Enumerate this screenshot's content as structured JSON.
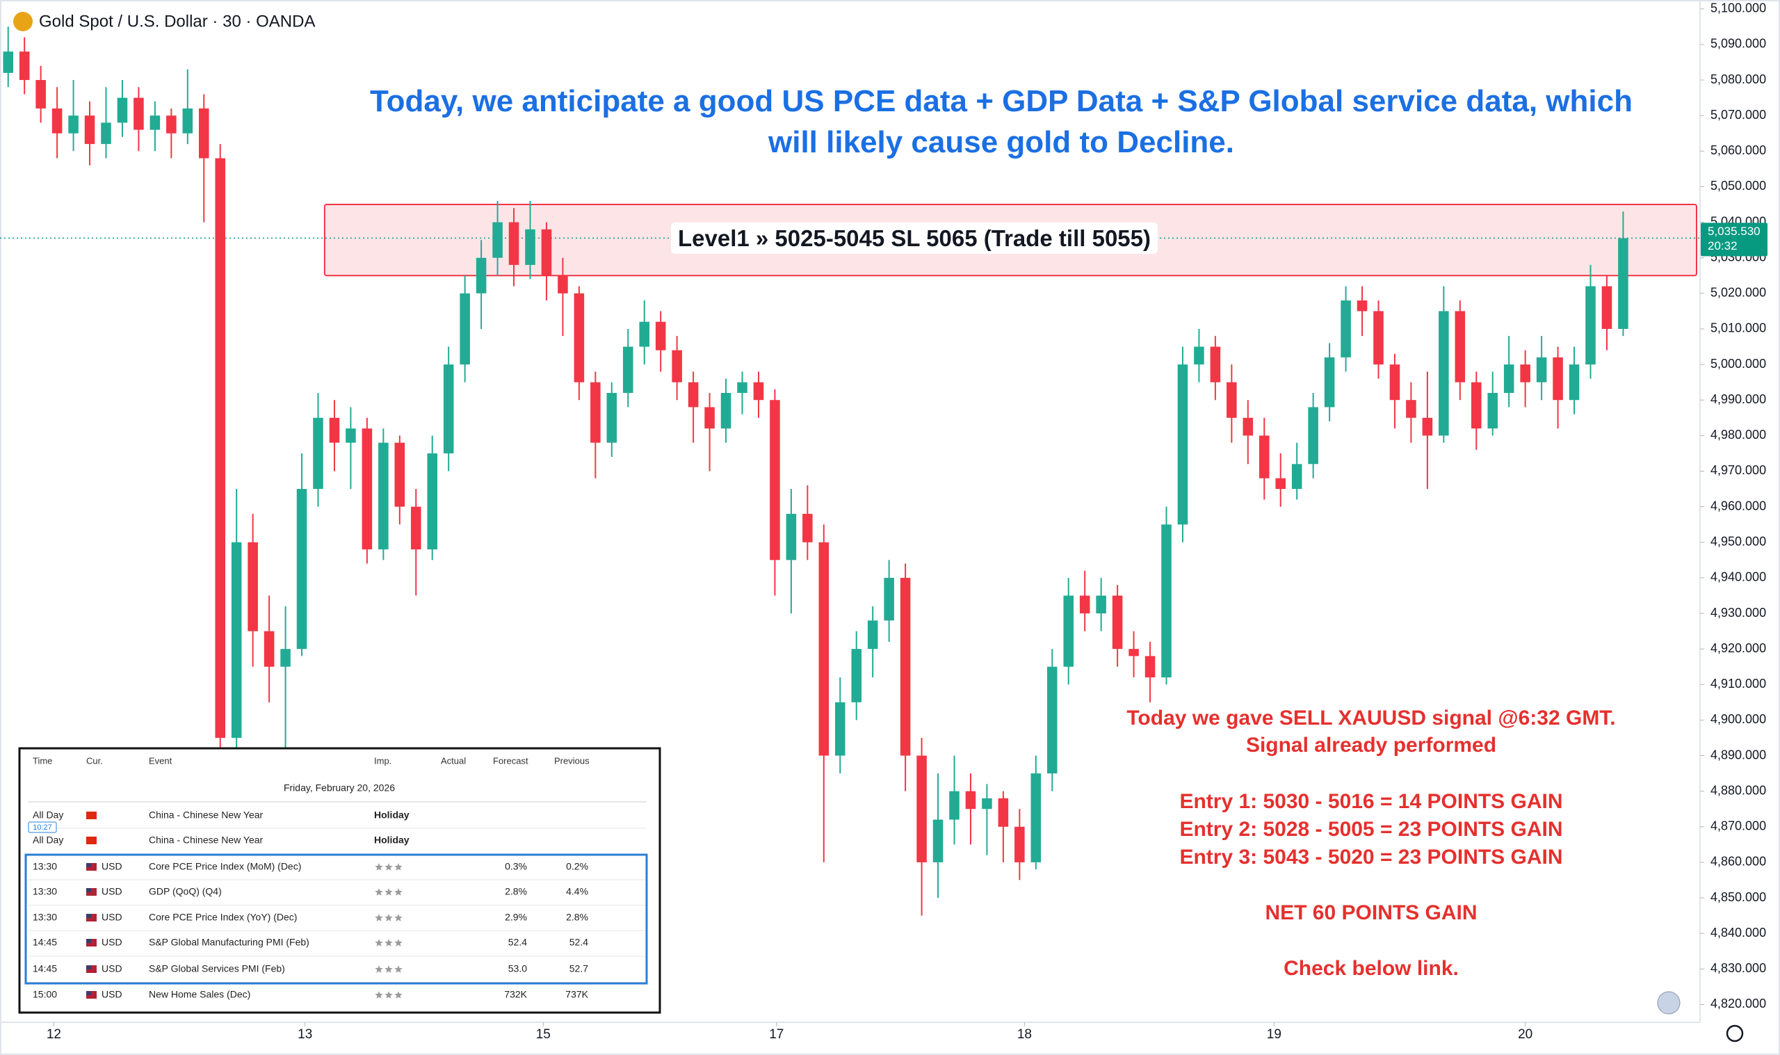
{
  "chart_data": {
    "type": "candlestick",
    "title": "Gold Spot / U.S. Dollar · 30 · OANDA",
    "headline": "Today, we anticipate a good US PCE data + GDP Data + S&P Global service data, which will likely cause gold to Decline.",
    "signal_text": [
      "Today we gave SELL XAUUSD signal @6:32 GMT.",
      "Signal already performed",
      "Entry 1: 5030 - 5016 = 14 POINTS GAIN",
      "Entry 2: 5028 - 5005 = 23 POINTS GAIN",
      "Entry 3: 5043 - 5020 = 23 POINTS GAIN",
      "NET 60 POINTS GAIN",
      "Check below link."
    ],
    "up_color": "#22ab94",
    "down_color": "#f23645",
    "zone": {
      "from": 5025,
      "to": 5045,
      "x_start": 19.4,
      "label": "Level1 » 5025-5045 SL 5065 (Trade till 5055)",
      "color": "#f23645"
    },
    "last_price": {
      "value": 5035.53,
      "label": "5,035.530",
      "countdown": "20:32",
      "color": "#089981"
    },
    "xlim": [
      -0.5,
      103.5
    ],
    "ylim": [
      4815,
      5102.5
    ],
    "xticks": [
      {
        "value": 2.8,
        "label": "12"
      },
      {
        "value": 18.2,
        "label": "13"
      },
      {
        "value": 32.8,
        "label": "15"
      },
      {
        "value": 47.1,
        "label": "17"
      },
      {
        "value": 62.3,
        "label": "18"
      },
      {
        "value": 77.6,
        "label": "19"
      },
      {
        "value": 93,
        "label": "20"
      }
    ],
    "yticks": [
      {
        "value": 4820,
        "label": "4,820.000"
      },
      {
        "value": 4830,
        "label": "4,830.000"
      },
      {
        "value": 4840,
        "label": "4,840.000"
      },
      {
        "value": 4850,
        "label": "4,850.000"
      },
      {
        "value": 4860,
        "label": "4,860.000"
      },
      {
        "value": 4870,
        "label": "4,870.000"
      },
      {
        "value": 4880,
        "label": "4,880.000"
      },
      {
        "value": 4890,
        "label": "4,890.000"
      },
      {
        "value": 4900,
        "label": "4,900.000"
      },
      {
        "value": 4910,
        "label": "4,910.000"
      },
      {
        "value": 4920,
        "label": "4,920.000"
      },
      {
        "value": 4930,
        "label": "4,930.000"
      },
      {
        "value": 4940,
        "label": "4,940.000"
      },
      {
        "value": 4950,
        "label": "4,950.000"
      },
      {
        "value": 4960,
        "label": "4,960.000"
      },
      {
        "value": 4970,
        "label": "4,970.000"
      },
      {
        "value": 4980,
        "label": "4,980.000"
      },
      {
        "value": 4990,
        "label": "4,990.000"
      },
      {
        "value": 5000,
        "label": "5,000.000"
      },
      {
        "value": 5010,
        "label": "5,010.000"
      },
      {
        "value": 5020,
        "label": "5,020.000"
      },
      {
        "value": 5030,
        "label": "5,030.000"
      },
      {
        "value": 5040,
        "label": "5,040.000"
      },
      {
        "value": 5050,
        "label": "5,050.000"
      },
      {
        "value": 5060,
        "label": "5,060.000"
      },
      {
        "value": 5070,
        "label": "5,070.000"
      },
      {
        "value": 5080,
        "label": "5,080.000"
      },
      {
        "value": 5090,
        "label": "5,090.000"
      },
      {
        "value": 5100,
        "label": "5,100.000"
      }
    ],
    "x": [
      0,
      1,
      2,
      3,
      4,
      5,
      6,
      7,
      8,
      9,
      10,
      11,
      12,
      13,
      14,
      15,
      16,
      17,
      18,
      19,
      20,
      21,
      22,
      23,
      24,
      25,
      26,
      27,
      28,
      29,
      30,
      31,
      32,
      33,
      34,
      35,
      36,
      37,
      38,
      39,
      40,
      41,
      42,
      43,
      44,
      45,
      46,
      47,
      48,
      49,
      50,
      51,
      52,
      53,
      54,
      55,
      56,
      57,
      58,
      59,
      60,
      61,
      62,
      63,
      64,
      65,
      66,
      67,
      68,
      69,
      70,
      71,
      72,
      73,
      74,
      75,
      76,
      77,
      78,
      79,
      80,
      81,
      82,
      83,
      84,
      85,
      86,
      87,
      88,
      89,
      90,
      91,
      92,
      93,
      94,
      95,
      96,
      97,
      98,
      99
    ],
    "open": [
      5082,
      5088,
      5080,
      5072,
      5065,
      5070,
      5062,
      5068,
      5075,
      5066,
      5070,
      5065,
      5072,
      5058,
      4895,
      4950,
      4925,
      4915,
      4920,
      4965,
      4985,
      4978,
      4982,
      4948,
      4978,
      4960,
      4948,
      4975,
      5000,
      5020,
      5030,
      5040,
      5028,
      5038,
      5025,
      5020,
      4995,
      4978,
      4992,
      5005,
      5012,
      5004,
      4995,
      4988,
      4982,
      4992,
      4995,
      4990,
      4945,
      4958,
      4950,
      4890,
      4905,
      4920,
      4928,
      4940,
      4890,
      4860,
      4872,
      4880,
      4875,
      4878,
      4870,
      4860,
      4885,
      4915,
      4935,
      4930,
      4935,
      4920,
      4918,
      4912,
      4955,
      5000,
      5005,
      4995,
      4985,
      4980,
      4968,
      4965,
      4972,
      4988,
      5002,
      5018,
      5015,
      5000,
      4990,
      4985,
      4980,
      5015,
      4995,
      4982,
      4992,
      5000,
      4995,
      5002,
      4990,
      5000,
      5022,
      5010
    ],
    "high": [
      5095,
      5092,
      5084,
      5078,
      5080,
      5074,
      5078,
      5080,
      5078,
      5074,
      5072,
      5083,
      5076,
      5062,
      4965,
      4958,
      4935,
      4932,
      4975,
      4992,
      4990,
      4988,
      4985,
      4982,
      4980,
      4965,
      4980,
      5005,
      5025,
      5035,
      5046,
      5044,
      5046,
      5040,
      5030,
      5022,
      4998,
      4995,
      5010,
      5018,
      5015,
      5008,
      4998,
      4992,
      4996,
      4998,
      4998,
      4993,
      4965,
      4966,
      4955,
      4912,
      4925,
      4932,
      4945,
      4944,
      4895,
      4885,
      4890,
      4885,
      4882,
      4880,
      4875,
      4890,
      4920,
      4940,
      4942,
      4940,
      4938,
      4925,
      4922,
      4960,
      5005,
      5010,
      5008,
      5000,
      4990,
      4985,
      4975,
      4978,
      4992,
      5006,
      5022,
      5022,
      5018,
      5003,
      4995,
      4998,
      5022,
      5018,
      4998,
      4998,
      5008,
      5004,
      5008,
      5005,
      5005,
      5028,
      5025,
      5043
    ],
    "low": [
      5078,
      5076,
      5068,
      5058,
      5060,
      5056,
      5058,
      5064,
      5060,
      5060,
      5058,
      5062,
      5040,
      4890,
      4892,
      4915,
      4905,
      4888,
      4918,
      4960,
      4970,
      4965,
      4944,
      4945,
      4955,
      4935,
      4945,
      4970,
      4995,
      5010,
      5025,
      5022,
      5024,
      5018,
      5008,
      4990,
      4968,
      4974,
      4988,
      5000,
      4998,
      4990,
      4978,
      4970,
      4978,
      4986,
      4985,
      4935,
      4930,
      4945,
      4860,
      4885,
      4900,
      4912,
      4922,
      4880,
      4845,
      4850,
      4865,
      4865,
      4862,
      4860,
      4855,
      4858,
      4880,
      4910,
      4925,
      4925,
      4915,
      4912,
      4905,
      4910,
      4950,
      4995,
      4990,
      4978,
      4972,
      4962,
      4960,
      4962,
      4968,
      4984,
      4998,
      5008,
      4996,
      4982,
      4978,
      4965,
      4978,
      4990,
      4976,
      4980,
      4988,
      4988,
      4990,
      4982,
      4986,
      4996,
      5004,
      5008
    ],
    "close": [
      5088,
      5080,
      5072,
      5065,
      5070,
      5062,
      5068,
      5075,
      5066,
      5070,
      5065,
      5072,
      5058,
      4895,
      4950,
      4925,
      4915,
      4920,
      4965,
      4985,
      4978,
      4982,
      4948,
      4978,
      4960,
      4948,
      4975,
      5000,
      5020,
      5030,
      5040,
      5028,
      5038,
      5025,
      5020,
      4995,
      4978,
      4992,
      5005,
      5012,
      5004,
      4995,
      4988,
      4982,
      4992,
      4995,
      4990,
      4945,
      4958,
      4950,
      4890,
      4905,
      4920,
      4928,
      4940,
      4890,
      4860,
      4872,
      4880,
      4875,
      4878,
      4870,
      4860,
      4885,
      4915,
      4935,
      4930,
      4935,
      4920,
      4918,
      4912,
      4955,
      5000,
      5005,
      4995,
      4985,
      4980,
      4968,
      4965,
      4972,
      4988,
      5002,
      5018,
      5015,
      5000,
      4990,
      4985,
      4980,
      5015,
      4995,
      4982,
      4992,
      5000,
      4995,
      5002,
      4990,
      5000,
      5022,
      5010,
      5035.53
    ]
  },
  "calendar": {
    "columns": [
      "Time",
      "Cur.",
      "Event",
      "Imp.",
      "Actual",
      "Forecast",
      "Previous"
    ],
    "date": "Friday, February 20, 2026",
    "time_marker": "10:27",
    "highlight_color": "#2a7fd4",
    "highlight_rows": [
      2,
      3,
      4,
      5,
      6
    ],
    "rows": [
      {
        "time": "All Day",
        "flag": "cn",
        "event": "China - Chinese New Year",
        "importance_label": "Holiday"
      },
      {
        "time": "All Day",
        "flag": "cn",
        "event": "China - Chinese New Year",
        "importance_label": "Holiday"
      },
      {
        "time": "13:30",
        "flag": "us",
        "currency": "USD",
        "event": "Core PCE Price Index (MoM) (Dec)",
        "importance": 3,
        "forecast": "0.3%",
        "previous": "0.2%"
      },
      {
        "time": "13:30",
        "flag": "us",
        "currency": "USD",
        "event": "GDP (QoQ) (Q4)",
        "importance": 3,
        "forecast": "2.8%",
        "previous": "4.4%"
      },
      {
        "time": "13:30",
        "flag": "us",
        "currency": "USD",
        "event": "Core PCE Price Index (YoY) (Dec)",
        "importance": 3,
        "forecast": "2.9%",
        "previous": "2.8%"
      },
      {
        "time": "14:45",
        "flag": "us",
        "currency": "USD",
        "event": "S&P Global Manufacturing PMI (Feb)",
        "importance": 3,
        "forecast": "52.4",
        "previous": "52.4"
      },
      {
        "time": "14:45",
        "flag": "us",
        "currency": "USD",
        "event": "S&P Global Services PMI (Feb)",
        "importance": 3,
        "forecast": "53.0",
        "previous": "52.7"
      },
      {
        "time": "15:00",
        "flag": "us",
        "currency": "USD",
        "event": "New Home Sales (Dec)",
        "importance": 3,
        "forecast": "732K",
        "previous": "737K"
      }
    ]
  }
}
